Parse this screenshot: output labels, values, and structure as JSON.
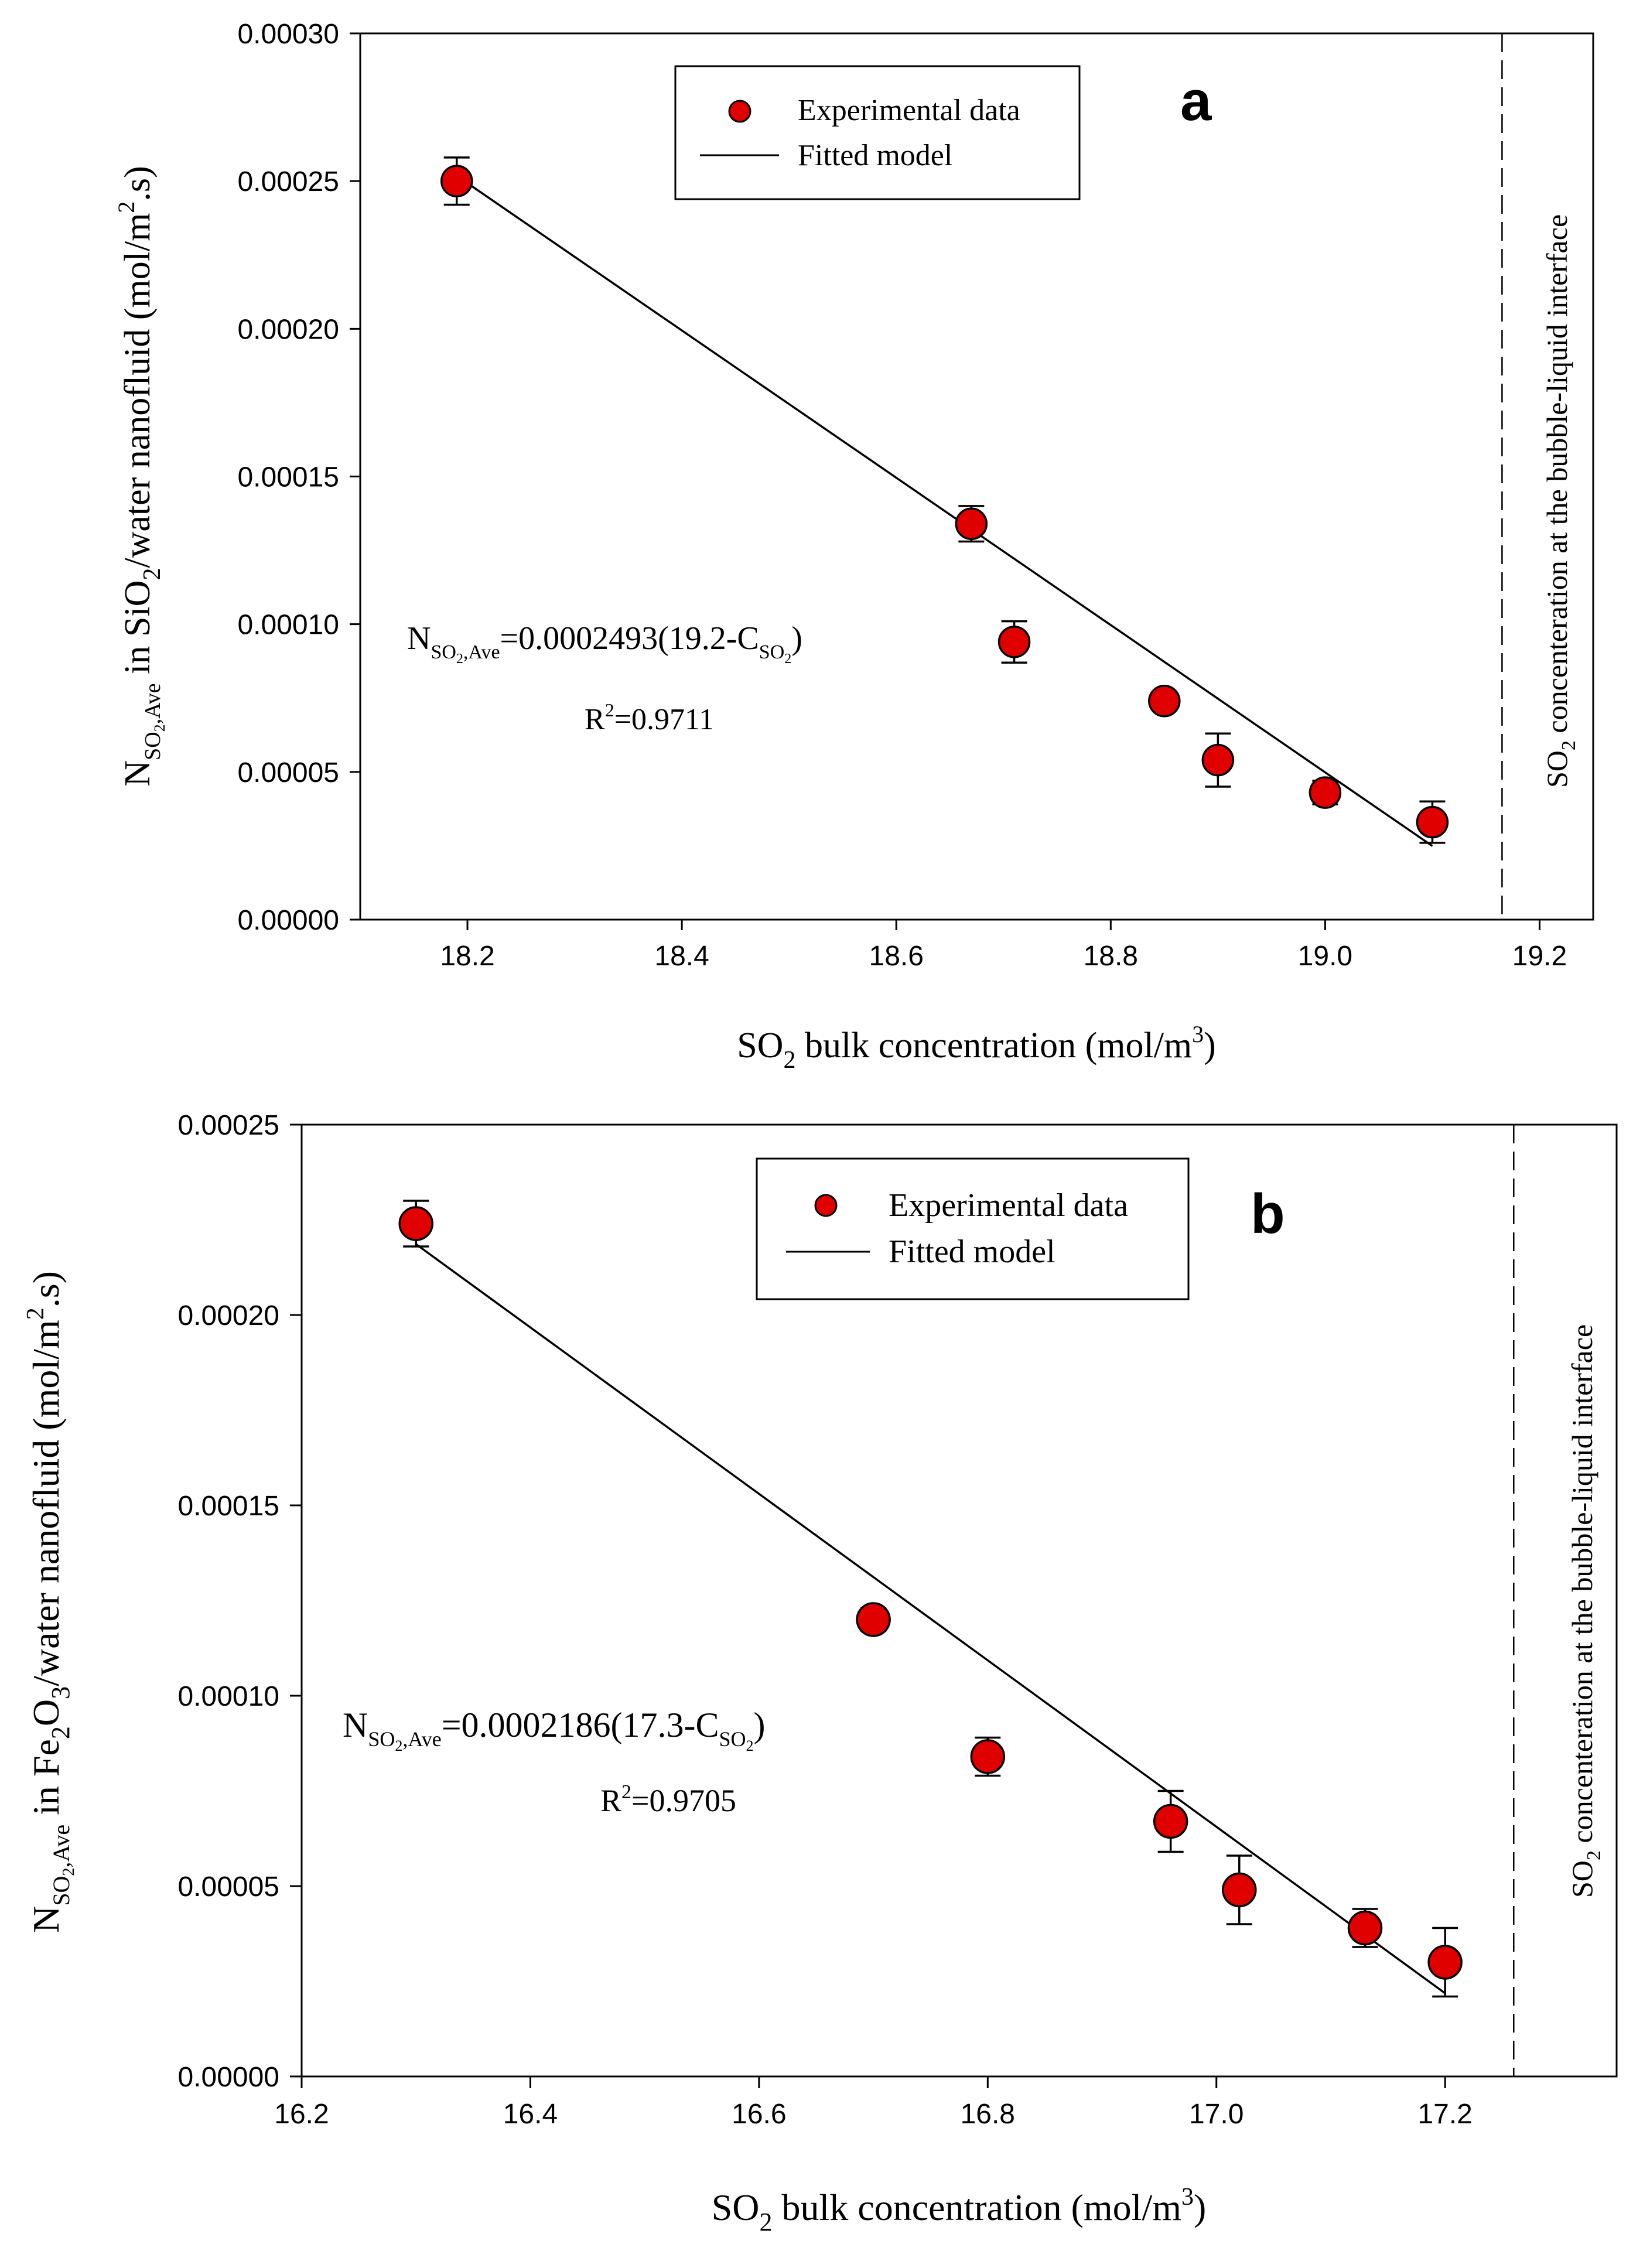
{
  "chart_data": [
    {
      "type": "scatter",
      "panel": "a",
      "xlabel": {
        "main": "SO",
        "sub": "2",
        "rest": " bulk concentration (mol/m",
        "sup": "3",
        "end": ")"
      },
      "ylabel": {
        "n": "N",
        "nsub": "SO",
        "nsub2": "2",
        "nsub3": ",Ave",
        "mid": " in SiO",
        "midsub": "2",
        "rest": "/water nanofluid (mol/m",
        "sup": "2",
        "end": ".s)"
      },
      "xlim": [
        18.1,
        19.25
      ],
      "ylim": [
        0,
        0.0003
      ],
      "xticks": [
        18.2,
        18.4,
        18.6,
        18.8,
        19.0,
        19.2
      ],
      "xtick_labels": [
        "18.2",
        "18.4",
        "18.6",
        "18.8",
        "19.0",
        "19.2"
      ],
      "yticks": [
        0,
        5e-05,
        0.0001,
        0.00015,
        0.0002,
        0.00025,
        0.0003
      ],
      "ytick_labels": [
        "0.00000",
        "0.00005",
        "0.00010",
        "0.00015",
        "0.00020",
        "0.00025",
        "0.00030"
      ],
      "series": [
        {
          "name": "Experimental data",
          "x": [
            18.19,
            18.67,
            18.71,
            18.85,
            18.9,
            19.0,
            19.1
          ],
          "y": [
            0.00025,
            0.000134,
            9.4e-05,
            7.4e-05,
            5.4e-05,
            4.3e-05,
            3.3e-05
          ],
          "err": [
            8e-06,
            6e-06,
            7e-06,
            3e-06,
            9e-06,
            4e-06,
            7e-06
          ]
        }
      ],
      "fit": {
        "name": "Fitted model",
        "slope": 0.0002493,
        "intercept_x": 19.2,
        "x_range": [
          18.19,
          19.1
        ]
      },
      "interface_x": 19.165,
      "interface_label": {
        "a": "SO",
        "b": "2",
        "c": " concenteration at the bubble-liquid interface"
      },
      "equation": {
        "n": "N",
        "s1": "SO",
        "s2": "2",
        "s3": ",Ave",
        "rest": "=0.0002493(19.2-C",
        "cs": "SO",
        "cs2": "2",
        "end": ")"
      },
      "r2": {
        "r": "R",
        "sup": "2",
        "val": "=0.9711"
      },
      "legend": [
        "Experimental data",
        "Fitted model"
      ],
      "colors": {
        "marker": "#e00000",
        "line": "#000000"
      }
    },
    {
      "type": "scatter",
      "panel": "b",
      "xlabel": {
        "main": "SO",
        "sub": "2",
        "rest": " bulk concentration (mol/m",
        "sup": "3",
        "end": ")"
      },
      "ylabel": {
        "n": "N",
        "nsub": "SO",
        "nsub2": "2",
        "nsub3": ",Ave",
        "mid": " in Fe",
        "midsub": "2",
        "mid2": "O",
        "mid2sub": "3",
        "rest": "/water nanofluid (mol/m",
        "sup": "2",
        "end": ".s)"
      },
      "xlim": [
        16.2,
        17.35
      ],
      "ylim": [
        0,
        0.00025
      ],
      "xticks": [
        16.2,
        16.4,
        16.6,
        16.8,
        17.0,
        17.2
      ],
      "xtick_labels": [
        "16.2",
        "16.4",
        "16.6",
        "16.8",
        "17.0",
        "17.2"
      ],
      "yticks": [
        0,
        5e-05,
        0.0001,
        0.00015,
        0.0002,
        0.00025
      ],
      "ytick_labels": [
        "0.00000",
        "0.00005",
        "0.00010",
        "0.00015",
        "0.00020",
        "0.00025"
      ],
      "series": [
        {
          "name": "Experimental data",
          "x": [
            16.3,
            16.7,
            16.8,
            16.96,
            17.02,
            17.13,
            17.2
          ],
          "y": [
            0.000224,
            0.00012,
            8.4e-05,
            6.7e-05,
            4.9e-05,
            3.9e-05,
            3e-05
          ],
          "err": [
            6e-06,
            3e-06,
            5e-06,
            8e-06,
            9e-06,
            5e-06,
            9e-06
          ]
        }
      ],
      "fit": {
        "name": "Fitted model",
        "slope": 0.0002186,
        "intercept_x": 17.3,
        "x_range": [
          16.3,
          17.2
        ]
      },
      "interface_x": 17.26,
      "interface_label": {
        "a": "SO",
        "b": "2",
        "c": " concenteration at the bubble-liquid interface"
      },
      "equation": {
        "n": "N",
        "s1": "SO",
        "s2": "2",
        "s3": ",Ave",
        "rest": "=0.0002186(17.3-C",
        "cs": "SO",
        "cs2": "2",
        "end": ")"
      },
      "r2": {
        "r": "R",
        "sup": "2",
        "val": "=0.9705"
      },
      "legend": [
        "Experimental data",
        "Fitted model"
      ],
      "colors": {
        "marker": "#e00000",
        "line": "#000000"
      }
    }
  ]
}
